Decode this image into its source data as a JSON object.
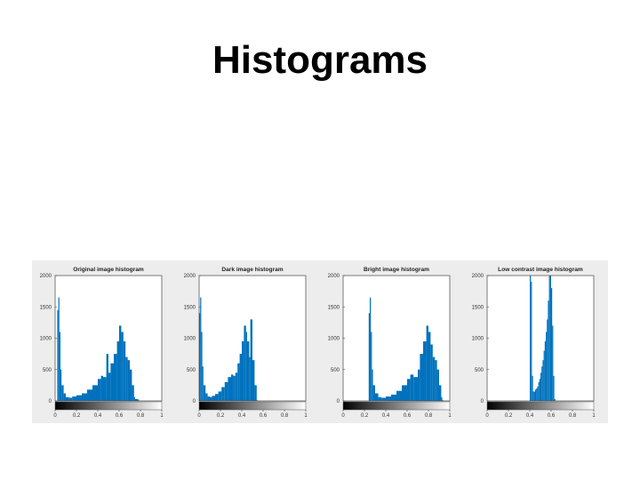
{
  "slide": {
    "title": "Histograms"
  },
  "style": {
    "bar_color": "#0072BD",
    "figure_background": "#ededed",
    "axes_background": "#ffffff"
  },
  "chart_data": [
    {
      "type": "bar",
      "title": "Original image histogram",
      "xlim": [
        0,
        1
      ],
      "ylim": [
        0,
        2000
      ],
      "xticks": [
        "0",
        "0.2",
        "0.4",
        "0.6",
        "0.8",
        "1"
      ],
      "yticks": [
        "0",
        "500",
        "1000",
        "1500",
        "2000"
      ],
      "colorbar": "grayscale",
      "x": [
        0.02,
        0.03,
        0.04,
        0.05,
        0.06,
        0.08,
        0.1,
        0.13,
        0.16,
        0.2,
        0.25,
        0.3,
        0.35,
        0.4,
        0.43,
        0.45,
        0.48,
        0.5,
        0.52,
        0.55,
        0.58,
        0.6,
        0.62,
        0.64,
        0.66,
        0.68,
        0.7,
        0.72,
        0.74,
        0.75,
        0.78
      ],
      "values": [
        1450,
        1650,
        1100,
        500,
        250,
        120,
        60,
        50,
        70,
        90,
        120,
        180,
        250,
        350,
        400,
        380,
        750,
        450,
        600,
        750,
        950,
        1200,
        1100,
        950,
        700,
        650,
        500,
        250,
        60,
        30,
        10
      ]
    },
    {
      "type": "bar",
      "title": "Dark image histogram",
      "xlim": [
        0,
        1
      ],
      "ylim": [
        0,
        2000
      ],
      "xticks": [
        "0",
        "0.2",
        "0.4",
        "0.6",
        "0.8",
        "1"
      ],
      "yticks": [
        "0",
        "500",
        "1000",
        "1500",
        "2000"
      ],
      "colorbar": "grayscale",
      "x": [
        0.0,
        0.01,
        0.02,
        0.03,
        0.04,
        0.06,
        0.08,
        0.1,
        0.12,
        0.15,
        0.18,
        0.21,
        0.24,
        0.27,
        0.3,
        0.32,
        0.34,
        0.36,
        0.38,
        0.4,
        0.42,
        0.44,
        0.45,
        0.47,
        0.48,
        0.5,
        0.52,
        0.54
      ],
      "values": [
        1400,
        1650,
        1100,
        550,
        250,
        120,
        70,
        60,
        80,
        110,
        150,
        220,
        300,
        380,
        420,
        400,
        450,
        600,
        750,
        950,
        1200,
        1100,
        950,
        700,
        1300,
        650,
        250,
        10
      ]
    },
    {
      "type": "bar",
      "title": "Bright image histogram",
      "xlim": [
        0,
        1
      ],
      "ylim": [
        0,
        2000
      ],
      "xticks": [
        "0",
        "0.2",
        "0.4",
        "0.6",
        "0.8",
        "1"
      ],
      "yticks": [
        "0",
        "500",
        "1000",
        "1500",
        "2000"
      ],
      "colorbar": "grayscale",
      "x": [
        0.24,
        0.25,
        0.26,
        0.27,
        0.28,
        0.3,
        0.33,
        0.36,
        0.4,
        0.45,
        0.5,
        0.55,
        0.6,
        0.63,
        0.66,
        0.7,
        0.72,
        0.75,
        0.78,
        0.8,
        0.82,
        0.84,
        0.86,
        0.88,
        0.9,
        0.92,
        0.93
      ],
      "values": [
        1400,
        1650,
        1100,
        500,
        250,
        120,
        60,
        50,
        70,
        100,
        160,
        250,
        350,
        420,
        380,
        500,
        750,
        950,
        1200,
        1100,
        900,
        700,
        650,
        500,
        250,
        60,
        10
      ]
    },
    {
      "type": "bar",
      "title": "Low contrast image histogram",
      "xlim": [
        0,
        1
      ],
      "ylim": [
        0,
        2000
      ],
      "xticks": [
        "0",
        "0.2",
        "0.4",
        "0.6",
        "0.8",
        "1"
      ],
      "yticks": [
        "0",
        "500",
        "1000",
        "1500",
        "2000"
      ],
      "colorbar": "grayscale",
      "x": [
        0.4,
        0.41,
        0.42,
        0.43,
        0.44,
        0.45,
        0.46,
        0.47,
        0.48,
        0.49,
        0.5,
        0.51,
        0.52,
        0.53,
        0.54,
        0.55,
        0.56,
        0.57,
        0.58,
        0.59,
        0.6,
        0.61,
        0.62,
        0.63
      ],
      "values": [
        2000,
        1900,
        400,
        150,
        150,
        180,
        200,
        230,
        300,
        350,
        450,
        550,
        650,
        800,
        950,
        1100,
        1300,
        1600,
        2000,
        2000,
        1800,
        1200,
        400,
        30
      ]
    }
  ]
}
